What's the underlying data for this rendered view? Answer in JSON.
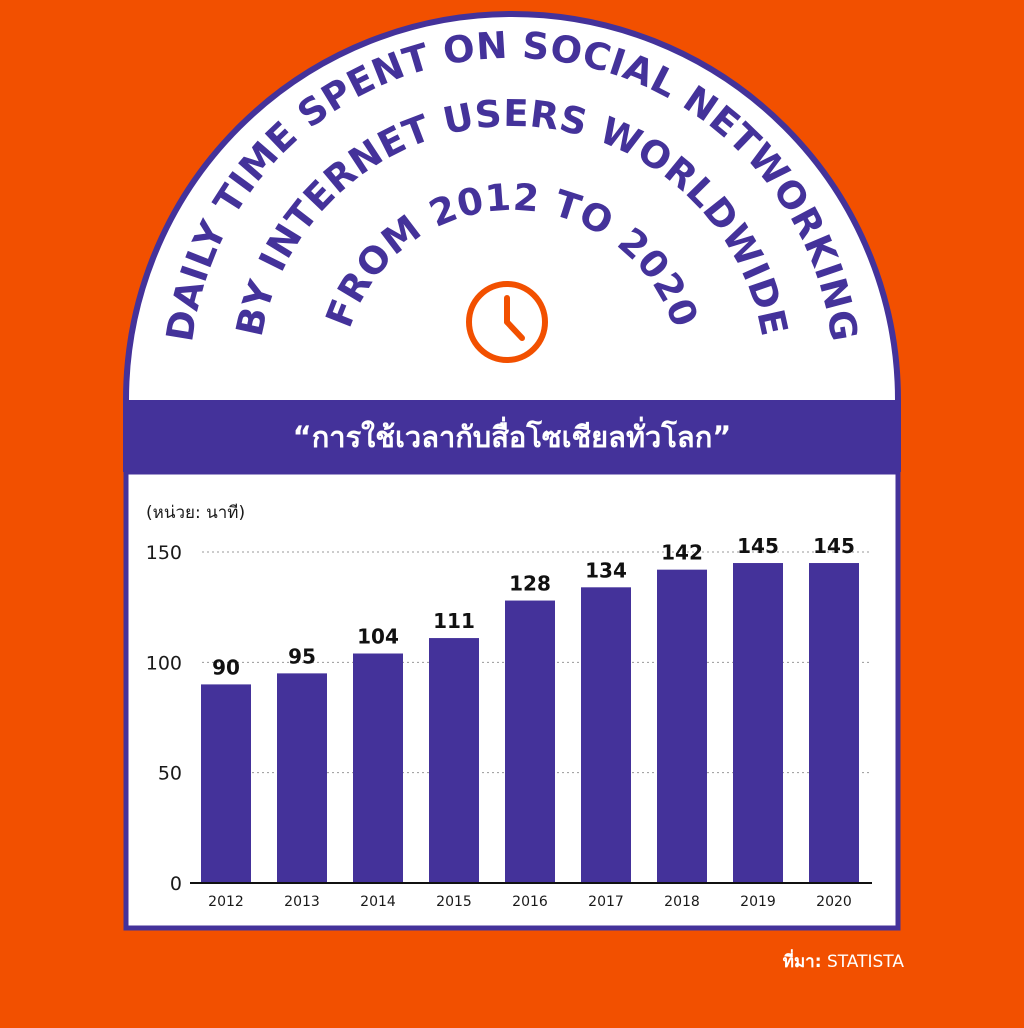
{
  "title_lines": [
    "DAILY TIME SPENT ON SOCIAL NETWORKING",
    "BY INTERNET USERS WORLDWIDE",
    "FROM 2012 TO 2020"
  ],
  "banner": "“การใช้เวลากับสื่อโซเชียลทั่วโลก”",
  "unit_label": "(หน่วย: นาที)",
  "source": {
    "prefix": "ที่มา:",
    "name": "STATISTA"
  },
  "colors": {
    "background": "#F25000",
    "accent": "#44329A",
    "panel": "#FFFFFF",
    "clock": "#F25000"
  },
  "icons": [
    "clock-icon"
  ],
  "chart_data": {
    "type": "bar",
    "title": "DAILY TIME SPENT ON SOCIAL NETWORKING BY INTERNET USERS WORLDWIDE FROM 2012 TO 2020",
    "subtitle": "“การใช้เวลากับสื่อโซเชียลทั่วโลก”",
    "ylabel": "(หน่วย: นาที)",
    "xlabel": "",
    "categories": [
      "2012",
      "2013",
      "2014",
      "2015",
      "2016",
      "2017",
      "2018",
      "2019",
      "2020"
    ],
    "values": [
      90,
      95,
      104,
      111,
      128,
      134,
      142,
      145,
      145
    ],
    "ylim": [
      0,
      150
    ],
    "yticks": [
      0,
      50,
      100,
      150
    ],
    "grid": "horizontal dotted",
    "data_labels": true
  }
}
